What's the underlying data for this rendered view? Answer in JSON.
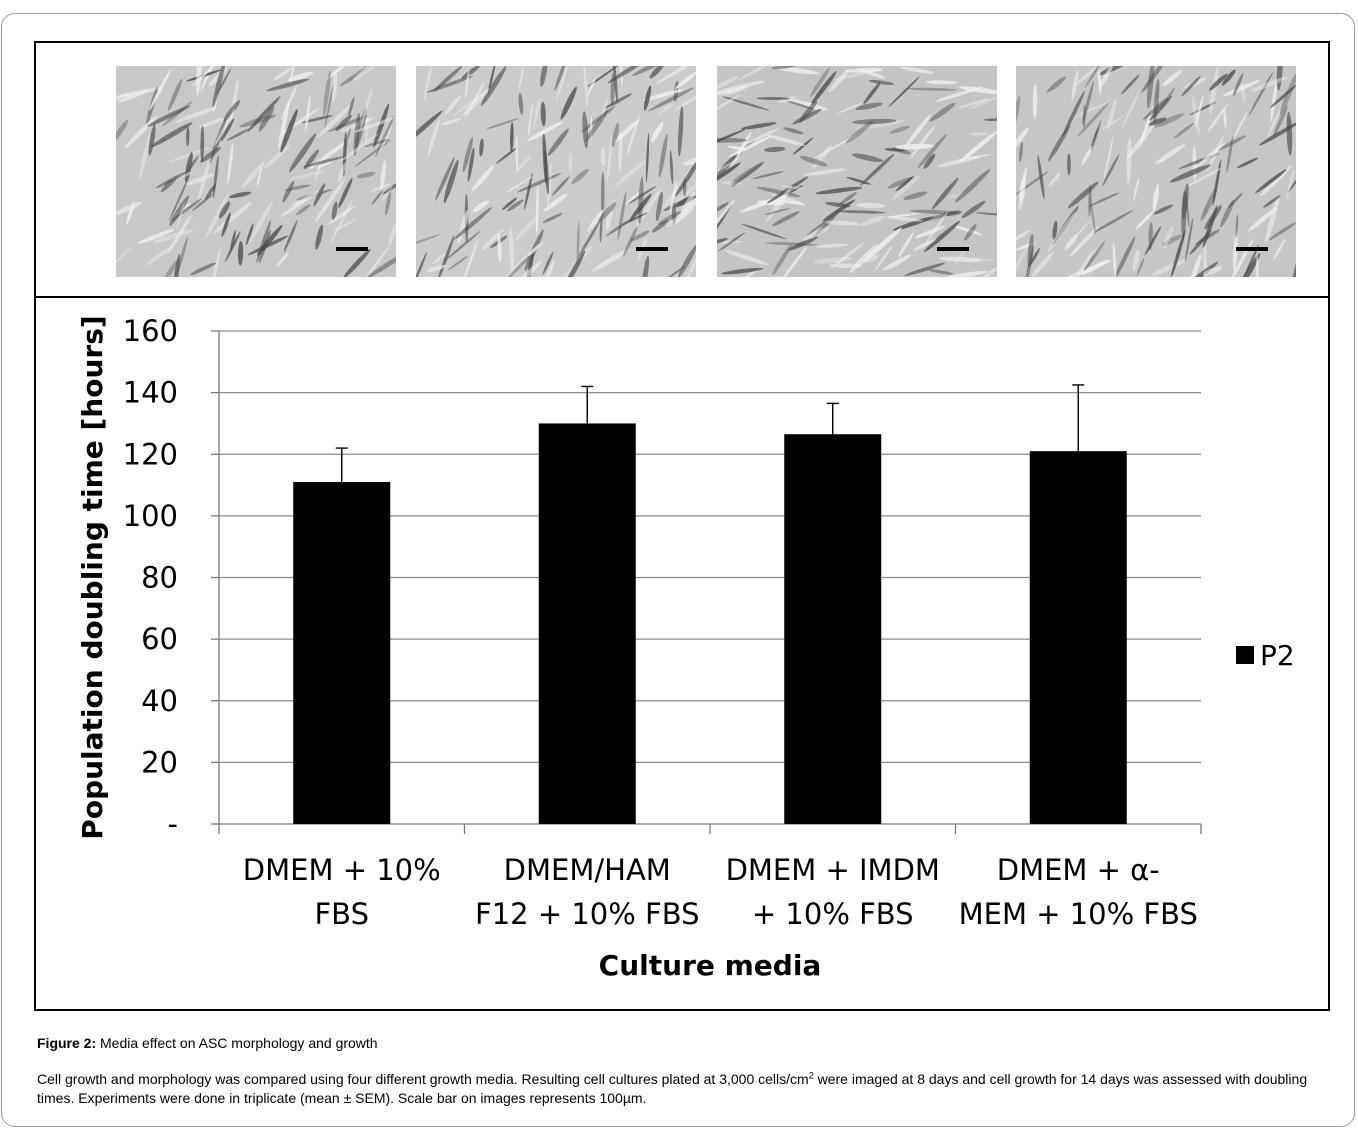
{
  "figure": {
    "label": "Figure 2:",
    "title": "Media effect on ASC morphology and growth",
    "caption_part1": "Cell growth and morphology was compared using four different growth media. Resulting cell cultures plated at 3,000 cells/cm",
    "caption_sup": "2",
    "caption_part2": " were imaged at 8 days and cell growth for 14 days was assessed with doubling times. Experiments were done in triplicate (mean ± SEM). Scale bar on images represents 100µm."
  },
  "micrographs": [
    {
      "name": "DMEM + 10% FBS",
      "tone": "#c8c8c8"
    },
    {
      "name": "DMEM/HAM F12 + 10% FBS",
      "tone": "#cbcbcb"
    },
    {
      "name": "DMEM + IMDM + 10% FBS",
      "tone": "#c4c4c4"
    },
    {
      "name": "DMEM + α-MEM + 10% FBS",
      "tone": "#c6c6c6"
    }
  ],
  "chart_data": {
    "type": "bar",
    "categories": [
      [
        "DMEM + 10%",
        "FBS"
      ],
      [
        "DMEM/HAM",
        "F12 + 10% FBS"
      ],
      [
        "DMEM + IMDM",
        "+ 10% FBS"
      ],
      [
        "DMEM + α-",
        "MEM + 10% FBS"
      ]
    ],
    "series": [
      {
        "name": "P2",
        "values": [
          111,
          130,
          126.5,
          121
        ],
        "errors": [
          11,
          12,
          10,
          21.5
        ],
        "color": "#000000"
      }
    ],
    "xlabel": "Culture media",
    "ylabel": "Population doubling time [hours]",
    "ylim": [
      0,
      160
    ],
    "yticks": [
      0,
      20,
      40,
      60,
      80,
      100,
      120,
      140,
      160
    ],
    "ytick_labels": [
      "-",
      "20",
      "40",
      "60",
      "80",
      "100",
      "120",
      "140",
      "160"
    ],
    "grid": true,
    "gridline_color": "#8c8c8c",
    "legend_position": "right"
  }
}
